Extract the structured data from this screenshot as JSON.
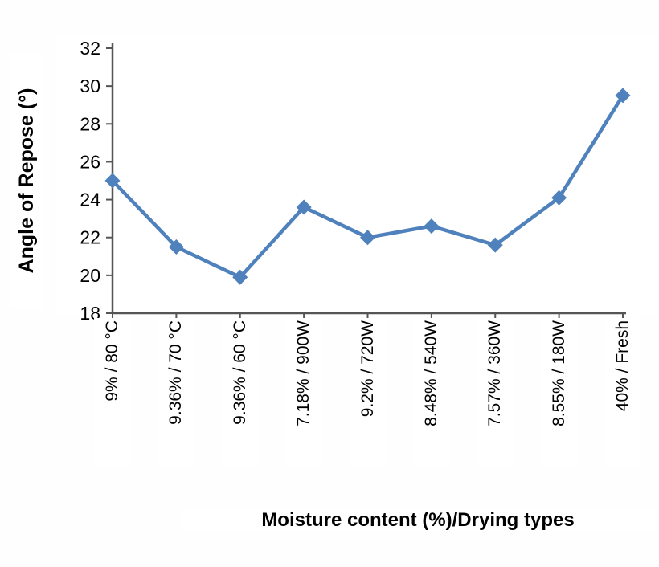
{
  "chart_data": {
    "type": "line",
    "title": "",
    "xlabel": "Moisture content (%)/Drying types",
    "ylabel": "Angle of Repose (°)",
    "categories": [
      "9% / 80 °C",
      "9.36% / 70 °C",
      "9.36% / 60 °C",
      "7.18% / 900W",
      "9.2% / 720W",
      "8.48% / 540W",
      "7.57% / 360W",
      "8.55% / 180W",
      "40% / Fresh"
    ],
    "values": [
      25.0,
      21.5,
      19.9,
      23.6,
      22.0,
      22.6,
      21.6,
      24.1,
      29.5
    ],
    "ylim": [
      18,
      32
    ],
    "ytick_step": 2,
    "yticks": [
      18,
      20,
      22,
      24,
      26,
      28,
      30,
      32
    ],
    "grid": false,
    "legend": "none",
    "line_color": "#4f81bd",
    "marker": "diamond",
    "axis_color": "#555555",
    "text_color": "#000000"
  }
}
